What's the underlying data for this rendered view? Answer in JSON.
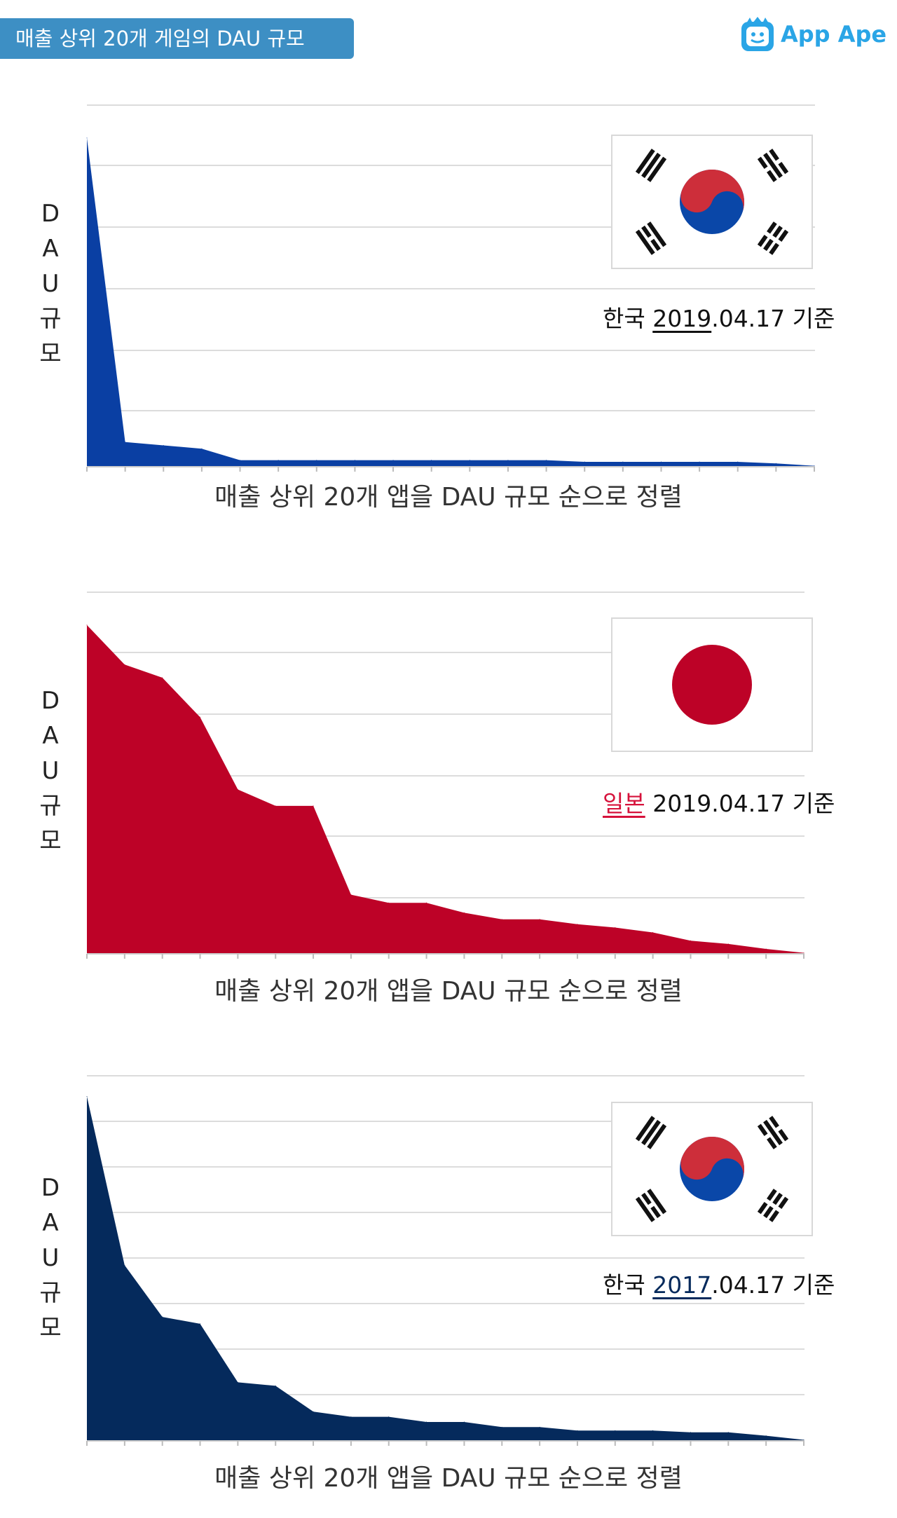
{
  "header": {
    "title": "매출 상위 20개 게임의 DAU 규모",
    "logo_text": "App Ape"
  },
  "colors": {
    "badge": "#3d8fc4",
    "logo": "#2aa5e6",
    "korea_2019": "#0a3fa3",
    "japan_2019": "#bd0227",
    "korea_2017": "#052a5c",
    "grid": "#dcdcdc"
  },
  "panels": [
    {
      "flag_icon": "korea-flag-icon",
      "ylabel": [
        "D",
        "A",
        "U",
        "규",
        "모"
      ],
      "xlabel": "매출 상위 20개 앱을 DAU 규모 순으로 정렬",
      "caption": {
        "prefix": "한국 ",
        "highlight": "2019",
        "suffix": ".04.17 기준",
        "highlight_color": "#111111"
      }
    },
    {
      "flag_icon": "japan-flag-icon",
      "ylabel": [
        "D",
        "A",
        "U",
        "규",
        "모"
      ],
      "xlabel": "매출 상위 20개 앱을 DAU 규모 순으로 정렬",
      "caption": {
        "prefix": "",
        "highlight": "일본",
        "suffix": " 2019.04.17 기준",
        "highlight_color": "#d6123b"
      }
    },
    {
      "flag_icon": "korea-flag-icon",
      "ylabel": [
        "D",
        "A",
        "U",
        "규",
        "모"
      ],
      "xlabel": "매출 상위 20개 앱을 DAU 규모 순으로 정렬",
      "caption": {
        "prefix": "한국 ",
        "highlight": "2017",
        "suffix": ".04.17 기준",
        "highlight_color": "#052a5c"
      }
    }
  ],
  "chart_data": [
    {
      "type": "area",
      "x": [
        1,
        2,
        3,
        4,
        5,
        6,
        7,
        8,
        9,
        10,
        11,
        12,
        13,
        14,
        15,
        16,
        17,
        18,
        19,
        20
      ],
      "series": [
        {
          "values": [
            100,
            7.5,
            6.5,
            5.5,
            2,
            2,
            2,
            2,
            2,
            2,
            2,
            2,
            2,
            1.5,
            1.5,
            1.5,
            1.5,
            1.5,
            1,
            0.3
          ],
          "color": "#0a3fa3"
        }
      ],
      "ylim": [
        0,
        110
      ],
      "grid": true,
      "legend": "none"
    },
    {
      "type": "area",
      "x": [
        1,
        2,
        3,
        4,
        5,
        6,
        7,
        8,
        9,
        10,
        11,
        12,
        13,
        14,
        15,
        16,
        17,
        18,
        19,
        20
      ],
      "series": [
        {
          "values": [
            100,
            88,
            84,
            72,
            50,
            45,
            45,
            18,
            15.5,
            15.5,
            12.5,
            10.5,
            10.5,
            9,
            8,
            6.5,
            4,
            3,
            1.5,
            0.3
          ],
          "color": "#bd0227"
        }
      ],
      "ylim": [
        0,
        110
      ],
      "grid": true,
      "legend": "none"
    },
    {
      "type": "area",
      "x": [
        1,
        2,
        3,
        4,
        5,
        6,
        7,
        8,
        9,
        10,
        11,
        12,
        13,
        14,
        15,
        16,
        17,
        18,
        19,
        20
      ],
      "series": [
        {
          "values": [
            100,
            51,
            36,
            34,
            17,
            16,
            8.5,
            7,
            7,
            5.5,
            5.5,
            4,
            4,
            3,
            3,
            3,
            2.5,
            2.5,
            1.5,
            0.3
          ],
          "color": "#052a5c"
        }
      ],
      "ylim": [
        0,
        106
      ],
      "grid": true,
      "legend": "none"
    }
  ]
}
